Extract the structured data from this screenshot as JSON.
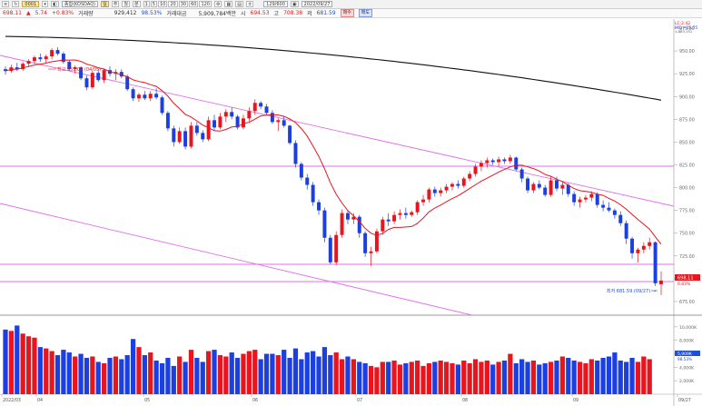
{
  "toolbar": {
    "code": "0001",
    "name": "종합(KOSDAQ)",
    "period_buttons": [
      "1",
      "5",
      "10",
      "20",
      "30",
      "60",
      "120"
    ],
    "period_label": "129/600",
    "date": "2022/09/27"
  },
  "infobar": {
    "price": "698.11",
    "change_arrow": "▲",
    "change": "5.74",
    "change_pct": "+0.83%",
    "volume_label": "거래량",
    "volume": "929,412",
    "volume_ratio": "98.53%",
    "amount_label": "거래대금",
    "amount": "5,909,784백만",
    "open_label": "시",
    "open": "694.53",
    "high_label": "고",
    "high": "708.38",
    "low_label": "저",
    "low": "681.59",
    "buy_label": "매수",
    "sell_label": "매도"
  },
  "legend": {
    "lc": "LC:2.42",
    "mc": "MC:~35.75",
    "extra": "1,883,151"
  },
  "price_axis_ticks": [
    "975.00",
    "950.00",
    "925.00",
    "900.00",
    "875.00",
    "850.00",
    "825.00",
    "800.00",
    "775.00",
    "750.00",
    "725.00",
    "700.00",
    "675.00"
  ],
  "volume_axis_ticks": [
    "10,000K",
    "8,000K",
    "6,000K",
    "4,000K",
    "2,000K"
  ],
  "x_labels": [
    "2022/03",
    "04",
    "05",
    "06",
    "07",
    "08",
    "09",
    "09/27"
  ],
  "annotations": {
    "high": "최고 953.08 (04/05)",
    "low": "최저 681.59 (09/27)",
    "last_price_tag": "698.11",
    "last_pct_tag": "0.83%",
    "volume_tag": "5,909K",
    "volume_pct_tag": "98.53%"
  },
  "colors": {
    "up": "#e8141e",
    "down": "#1b3fe0",
    "ma": "#e8141e",
    "long_ma": "#111111",
    "channel": "#e070e8"
  },
  "chart_data": {
    "type": "candlestick",
    "ylim": [
      660,
      985
    ],
    "candles": [
      [
        930,
        933,
        924,
        928
      ],
      [
        928,
        935,
        926,
        932
      ],
      [
        932,
        937,
        928,
        930
      ],
      [
        930,
        938,
        928,
        936
      ],
      [
        936,
        941,
        932,
        939
      ],
      [
        939,
        945,
        936,
        943
      ],
      [
        943,
        947,
        938,
        941
      ],
      [
        941,
        946,
        937,
        944
      ],
      [
        944,
        953,
        941,
        951
      ],
      [
        951,
        954,
        945,
        947
      ],
      [
        947,
        949,
        936,
        938
      ],
      [
        938,
        940,
        928,
        930
      ],
      [
        930,
        934,
        925,
        932
      ],
      [
        932,
        933,
        918,
        920
      ],
      [
        920,
        923,
        907,
        910
      ],
      [
        910,
        928,
        908,
        926
      ],
      [
        926,
        930,
        916,
        918
      ],
      [
        918,
        931,
        915,
        929
      ],
      [
        929,
        933,
        922,
        925
      ],
      [
        925,
        930,
        918,
        927
      ],
      [
        927,
        930,
        920,
        922
      ],
      [
        922,
        924,
        906,
        908
      ],
      [
        908,
        910,
        895,
        898
      ],
      [
        898,
        904,
        894,
        902
      ],
      [
        902,
        906,
        896,
        898
      ],
      [
        898,
        906,
        895,
        903
      ],
      [
        903,
        909,
        897,
        899
      ],
      [
        899,
        901,
        880,
        882
      ],
      [
        882,
        884,
        862,
        865
      ],
      [
        865,
        868,
        845,
        850
      ],
      [
        850,
        866,
        848,
        862
      ],
      [
        862,
        866,
        842,
        845
      ],
      [
        845,
        872,
        843,
        868
      ],
      [
        868,
        872,
        857,
        860
      ],
      [
        860,
        863,
        850,
        853
      ],
      [
        853,
        878,
        851,
        874
      ],
      [
        874,
        880,
        862,
        866
      ],
      [
        866,
        882,
        864,
        878
      ],
      [
        878,
        886,
        872,
        883
      ],
      [
        883,
        888,
        875,
        878
      ],
      [
        878,
        880,
        864,
        866
      ],
      [
        866,
        880,
        864,
        876
      ],
      [
        876,
        888,
        873,
        884
      ],
      [
        884,
        897,
        880,
        893
      ],
      [
        893,
        895,
        886,
        889
      ],
      [
        889,
        892,
        880,
        882
      ],
      [
        882,
        885,
        870,
        872
      ],
      [
        872,
        876,
        862,
        874
      ],
      [
        874,
        878,
        866,
        868
      ],
      [
        868,
        869,
        847,
        849
      ],
      [
        849,
        852,
        822,
        826
      ],
      [
        826,
        828,
        808,
        811
      ],
      [
        811,
        815,
        798,
        803
      ],
      [
        803,
        806,
        780,
        784
      ],
      [
        784,
        787,
        770,
        775
      ],
      [
        775,
        778,
        740,
        745
      ],
      [
        745,
        748,
        716,
        718
      ],
      [
        718,
        752,
        715,
        748
      ],
      [
        748,
        776,
        745,
        772
      ],
      [
        772,
        775,
        760,
        765
      ],
      [
        765,
        772,
        760,
        768
      ],
      [
        768,
        770,
        745,
        750
      ],
      [
        750,
        752,
        724,
        728
      ],
      [
        728,
        735,
        714,
        730
      ],
      [
        730,
        755,
        728,
        752
      ],
      [
        752,
        768,
        748,
        765
      ],
      [
        765,
        772,
        758,
        763
      ],
      [
        763,
        774,
        760,
        770
      ],
      [
        770,
        776,
        765,
        772
      ],
      [
        772,
        778,
        766,
        770
      ],
      [
        770,
        775,
        768,
        773
      ],
      [
        773,
        786,
        770,
        784
      ],
      [
        784,
        792,
        780,
        787
      ],
      [
        787,
        800,
        784,
        798
      ],
      [
        798,
        801,
        790,
        794
      ],
      [
        794,
        800,
        790,
        797
      ],
      [
        797,
        804,
        794,
        801
      ],
      [
        801,
        806,
        797,
        804
      ],
      [
        804,
        808,
        799,
        802
      ],
      [
        802,
        812,
        800,
        810
      ],
      [
        810,
        818,
        807,
        815
      ],
      [
        815,
        826,
        812,
        823
      ],
      [
        823,
        830,
        818,
        827
      ],
      [
        827,
        833,
        822,
        830
      ],
      [
        830,
        832,
        825,
        828
      ],
      [
        828,
        834,
        824,
        831
      ],
      [
        831,
        833,
        826,
        829
      ],
      [
        829,
        836,
        826,
        833
      ],
      [
        833,
        834,
        818,
        820
      ],
      [
        820,
        822,
        806,
        810
      ],
      [
        810,
        812,
        794,
        797
      ],
      [
        797,
        806,
        794,
        804
      ],
      [
        804,
        808,
        798,
        800
      ],
      [
        800,
        803,
        790,
        792
      ],
      [
        792,
        812,
        790,
        808
      ],
      [
        808,
        812,
        796,
        799
      ],
      [
        799,
        806,
        792,
        803
      ],
      [
        803,
        805,
        790,
        793
      ],
      [
        793,
        796,
        780,
        784
      ],
      [
        784,
        790,
        778,
        787
      ],
      [
        787,
        792,
        784,
        789
      ],
      [
        789,
        796,
        785,
        793
      ],
      [
        793,
        795,
        778,
        781
      ],
      [
        781,
        786,
        774,
        778
      ],
      [
        778,
        784,
        773,
        775
      ],
      [
        775,
        777,
        766,
        770
      ],
      [
        770,
        774,
        758,
        761
      ],
      [
        761,
        764,
        738,
        744
      ],
      [
        744,
        746,
        722,
        728
      ],
      [
        728,
        734,
        718,
        732
      ],
      [
        732,
        740,
        728,
        736
      ],
      [
        736,
        745,
        732,
        740
      ],
      [
        740,
        741,
        692,
        695
      ],
      [
        694,
        708,
        682,
        698
      ]
    ],
    "volumes": [
      9.6,
      9.4,
      10.2,
      9.0,
      8.6,
      8.4,
      7.0,
      6.8,
      6.4,
      5.8,
      6.6,
      6.2,
      5.6,
      6.0,
      5.4,
      5.6,
      4.8,
      4.6,
      5.4,
      5.6,
      5.2,
      5.8,
      8.2,
      7.0,
      5.8,
      6.2,
      5.0,
      4.6,
      5.4,
      4.2,
      5.6,
      4.8,
      6.6,
      5.4,
      4.8,
      6.4,
      6.6,
      5.8,
      5.6,
      6.2,
      5.4,
      6.0,
      6.4,
      6.6,
      5.2,
      6.0,
      6.0,
      5.8,
      6.6,
      5.4,
      6.8,
      5.2,
      6.2,
      6.4,
      5.6,
      7.0,
      5.8,
      6.2,
      5.2,
      5.6,
      5.2,
      4.8,
      4.6,
      4.2,
      4.0,
      4.8,
      4.8,
      5.0,
      4.4,
      4.6,
      4.8,
      5.0,
      4.2,
      4.6,
      4.8,
      5.0,
      4.8,
      4.6,
      4.4,
      5.0,
      4.6,
      5.2,
      4.8,
      5.0,
      4.4,
      4.8,
      5.0,
      6.0,
      4.6,
      5.2,
      4.8,
      5.0,
      4.4,
      4.6,
      4.8,
      5.0,
      5.6,
      5.4,
      5.0,
      4.8,
      4.6,
      5.2,
      5.0,
      5.4,
      5.6,
      6.2,
      5.0,
      4.8,
      5.4,
      4.8,
      5.6,
      5.2
    ]
  }
}
